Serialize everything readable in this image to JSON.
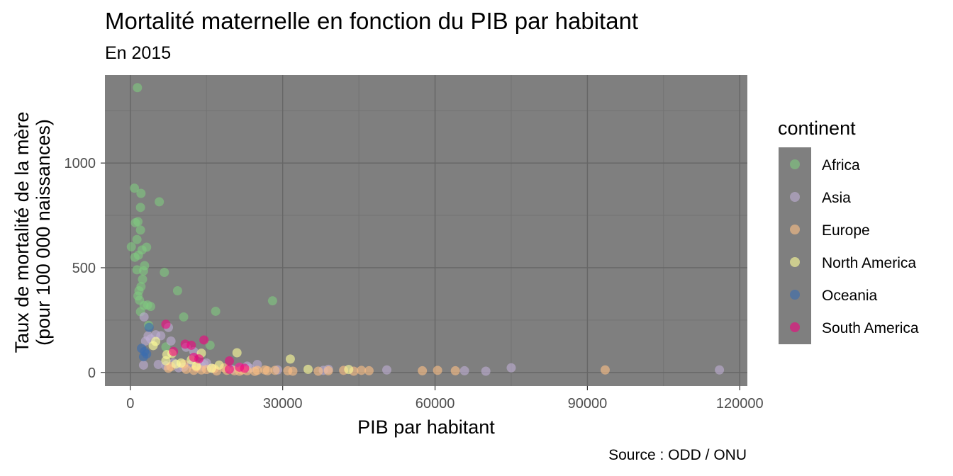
{
  "chart_data": {
    "type": "scatter",
    "title": "Mortalité maternelle en fonction du PIB par habitant",
    "subtitle": "En 2015",
    "xlabel": "PIB par habitant",
    "ylabel_lines": [
      "Taux de mortalité de la mère",
      "(pour 100 000 naissances)"
    ],
    "caption": "Source : ODD / ONU",
    "xlim": [
      -5000,
      121500
    ],
    "ylim": [
      -65,
      1420
    ],
    "x_ticks": [
      0,
      30000,
      60000,
      90000,
      120000
    ],
    "x_tick_labels": [
      "0",
      "30000",
      "60000",
      "90000",
      "120000"
    ],
    "y_ticks": [
      0,
      500,
      1000
    ],
    "y_tick_labels": [
      "0",
      "500",
      "1000"
    ],
    "grid": true,
    "legend": {
      "title": "continent",
      "position": "right"
    },
    "series": [
      {
        "name": "Africa",
        "color": "#7fc97f",
        "points": [
          [
            1400,
            1360
          ],
          [
            800,
            880
          ],
          [
            2100,
            855
          ],
          [
            5700,
            815
          ],
          [
            2000,
            788
          ],
          [
            1000,
            715
          ],
          [
            1500,
            720
          ],
          [
            2000,
            680
          ],
          [
            1300,
            635
          ],
          [
            3200,
            598
          ],
          [
            2300,
            585
          ],
          [
            200,
            600
          ],
          [
            1600,
            560
          ],
          [
            900,
            550
          ],
          [
            2800,
            510
          ],
          [
            2600,
            485
          ],
          [
            6700,
            478
          ],
          [
            1300,
            490
          ],
          [
            2400,
            445
          ],
          [
            2100,
            410
          ],
          [
            1700,
            390
          ],
          [
            9300,
            390
          ],
          [
            1500,
            365
          ],
          [
            1800,
            345
          ],
          [
            28000,
            342
          ],
          [
            3400,
            322
          ],
          [
            4000,
            315
          ],
          [
            2700,
            320
          ],
          [
            16800,
            292
          ],
          [
            2000,
            290
          ],
          [
            10500,
            265
          ],
          [
            3600,
            225
          ],
          [
            15700,
            130
          ],
          [
            7000,
            122
          ]
        ]
      },
      {
        "name": "Asia",
        "color": "#beaed4",
        "points": [
          [
            116000,
            12
          ],
          [
            75000,
            22
          ],
          [
            70000,
            6
          ],
          [
            65800,
            8
          ],
          [
            50500,
            12
          ],
          [
            39000,
            15
          ],
          [
            38000,
            10
          ],
          [
            29000,
            12
          ],
          [
            25000,
            38
          ],
          [
            23500,
            20
          ],
          [
            16000,
            20
          ],
          [
            15000,
            45
          ],
          [
            14000,
            30
          ],
          [
            12000,
            38
          ],
          [
            10500,
            25
          ],
          [
            9500,
            22
          ],
          [
            8000,
            150
          ],
          [
            7500,
            215
          ],
          [
            6000,
            175
          ],
          [
            5000,
            180
          ],
          [
            4000,
            160
          ],
          [
            3500,
            175
          ],
          [
            2700,
            265
          ],
          [
            2600,
            35
          ],
          [
            5500,
            38
          ],
          [
            7000,
            32
          ],
          [
            8500,
            45
          ],
          [
            11000,
            120
          ],
          [
            14500,
            40
          ],
          [
            3000,
            150
          ],
          [
            12500,
            100
          ],
          [
            20000,
            15
          ],
          [
            21500,
            25
          ],
          [
            23000,
            30
          ]
        ]
      },
      {
        "name": "Europe",
        "color": "#fdc086",
        "points": [
          [
            93500,
            12
          ],
          [
            64000,
            8
          ],
          [
            60500,
            10
          ],
          [
            57500,
            8
          ],
          [
            47000,
            8
          ],
          [
            45500,
            10
          ],
          [
            44000,
            6
          ],
          [
            42000,
            10
          ],
          [
            39000,
            8
          ],
          [
            37000,
            6
          ],
          [
            32000,
            6
          ],
          [
            31000,
            8
          ],
          [
            28500,
            10
          ],
          [
            27000,
            8
          ],
          [
            26500,
            12
          ],
          [
            25000,
            10
          ],
          [
            24500,
            5
          ],
          [
            23000,
            8
          ],
          [
            22000,
            12
          ],
          [
            21500,
            6
          ],
          [
            20500,
            8
          ],
          [
            19000,
            10
          ],
          [
            17000,
            7
          ],
          [
            15000,
            14
          ],
          [
            14000,
            12
          ],
          [
            12500,
            10
          ],
          [
            11000,
            15
          ],
          [
            7500,
            20
          ],
          [
            8000,
            28
          ],
          [
            10500,
            40
          ],
          [
            13000,
            25
          ],
          [
            16500,
            18
          ],
          [
            18500,
            22
          ]
        ]
      },
      {
        "name": "North America",
        "color": "#ffff99",
        "points": [
          [
            43000,
            14
          ],
          [
            35000,
            15
          ],
          [
            31500,
            64
          ],
          [
            21000,
            94
          ],
          [
            17500,
            35
          ],
          [
            14000,
            92
          ],
          [
            8200,
            90
          ],
          [
            7200,
            85
          ],
          [
            5000,
            148
          ],
          [
            4500,
            128
          ],
          [
            7000,
            56
          ],
          [
            9000,
            40
          ],
          [
            10000,
            45
          ],
          [
            13000,
            30
          ],
          [
            16000,
            20
          ],
          [
            12000,
            60
          ]
        ]
      },
      {
        "name": "Oceania",
        "color": "#386cb0",
        "points": [
          [
            2200,
            115
          ],
          [
            2800,
            100
          ],
          [
            3200,
            88
          ],
          [
            2600,
            75
          ],
          [
            3700,
            215
          ]
        ]
      },
      {
        "name": "South America",
        "color": "#f0027f",
        "points": [
          [
            7000,
            230
          ],
          [
            14500,
            155
          ],
          [
            10800,
            135
          ],
          [
            12000,
            130
          ],
          [
            12500,
            72
          ],
          [
            13500,
            65
          ],
          [
            19500,
            55
          ],
          [
            21500,
            25
          ],
          [
            19500,
            15
          ],
          [
            22500,
            20
          ],
          [
            8500,
            100
          ]
        ]
      }
    ]
  }
}
